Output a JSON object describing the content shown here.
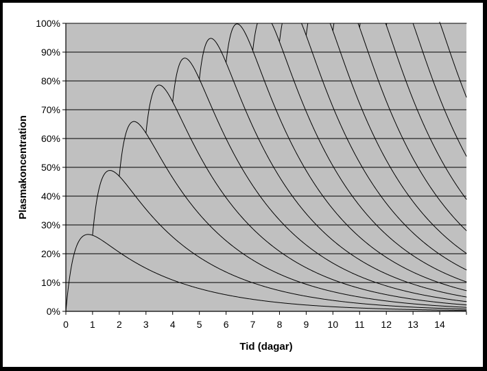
{
  "chart_data": {
    "type": "area",
    "xlabel": "Tid (dagar)",
    "ylabel": "Plasmakoncentration",
    "xlim": [
      0,
      15
    ],
    "ylim": [
      0,
      100
    ],
    "x_ticks": [
      "0",
      "1",
      "2",
      "3",
      "4",
      "5",
      "6",
      "7",
      "8",
      "9",
      "10",
      "11",
      "12",
      "13",
      "14"
    ],
    "y_ticks": [
      "0%",
      "10%",
      "20%",
      "30%",
      "40%",
      "50%",
      "60%",
      "70%",
      "80%",
      "90%",
      "100%"
    ],
    "grid": "horizontal",
    "plot_background": "#c0c0c0",
    "dose_interval_days": 1,
    "doses": 15,
    "peak_values": [
      26.7,
      47.5,
      62.6,
      73.6,
      81.3,
      86.8,
      90.6,
      93.3,
      95.2,
      96.6,
      97.6,
      98.3,
      98.8,
      99.3,
      99.6
    ],
    "trough_values": [
      21.0,
      41.4,
      54.0,
      62.6,
      73.2,
      80.4,
      84.0,
      87.7,
      91.3,
      93.4,
      94.9,
      96.1,
      97.0,
      97.7,
      98.2
    ],
    "band_colors": [
      "#ffffff",
      "#000000"
    ]
  }
}
